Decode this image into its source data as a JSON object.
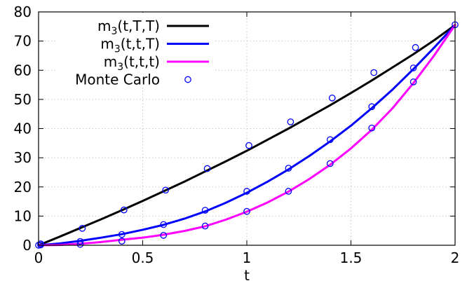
{
  "chart_data": {
    "type": "line",
    "title": "",
    "xlabel": "t",
    "ylabel": "",
    "xlim": [
      0,
      2
    ],
    "ylim": [
      0,
      80
    ],
    "x_ticks": [
      {
        "value": 0,
        "label": "0"
      },
      {
        "value": 0.5,
        "label": "0.5"
      },
      {
        "value": 1,
        "label": "1"
      },
      {
        "value": 1.5,
        "label": "1.5"
      },
      {
        "value": 2,
        "label": "2"
      }
    ],
    "y_ticks": [
      {
        "value": 0,
        "label": "0"
      },
      {
        "value": 10,
        "label": "10"
      },
      {
        "value": 20,
        "label": "20"
      },
      {
        "value": 30,
        "label": "30"
      },
      {
        "value": 40,
        "label": "40"
      },
      {
        "value": 50,
        "label": "50"
      },
      {
        "value": 60,
        "label": "60"
      },
      {
        "value": 70,
        "label": "70"
      },
      {
        "value": 80,
        "label": "80"
      }
    ],
    "grid": true,
    "legend_position": "top-left",
    "series": [
      {
        "name": "m3(t,T,T)",
        "legend_main": "m",
        "legend_sub": "3",
        "legend_args": "(t,T,T)",
        "color": "#000000",
        "style": "line",
        "x": [
          0,
          0.1,
          0.2,
          0.3,
          0.4,
          0.5,
          0.6,
          0.7,
          0.8,
          0.9,
          1.0,
          1.1,
          1.2,
          1.3,
          1.4,
          1.5,
          1.6,
          1.7,
          1.8,
          1.9,
          2.0
        ],
        "y": [
          0,
          2.9,
          5.9,
          8.9,
          12.0,
          15.2,
          18.5,
          21.8,
          25.3,
          28.8,
          32.4,
          36.2,
          40.0,
          44.0,
          48.0,
          52.2,
          56.5,
          61.0,
          65.5,
          70.3,
          75.5
        ]
      },
      {
        "name": "m3(t,t,T)",
        "legend_main": "m",
        "legend_sub": "3",
        "legend_args": "(t,t,T)",
        "color": "#0000ff",
        "style": "line",
        "x": [
          0,
          0.1,
          0.2,
          0.3,
          0.4,
          0.5,
          0.6,
          0.7,
          0.8,
          0.9,
          1.0,
          1.1,
          1.2,
          1.3,
          1.4,
          1.5,
          1.6,
          1.7,
          1.8,
          1.9,
          2.0
        ],
        "y": [
          0,
          0.6,
          1.5,
          2.6,
          3.8,
          5.3,
          7.0,
          9.1,
          11.6,
          14.6,
          18.0,
          21.8,
          26.0,
          30.6,
          35.6,
          41.0,
          47.0,
          53.4,
          60.4,
          67.8,
          75.5
        ]
      },
      {
        "name": "m3(t,t,t)",
        "legend_main": "m",
        "legend_sub": "3",
        "legend_args": "(t,t,t)",
        "color": "#ff00ff",
        "style": "line",
        "x": [
          0,
          0.1,
          0.2,
          0.3,
          0.4,
          0.5,
          0.6,
          0.7,
          0.8,
          0.9,
          1.0,
          1.1,
          1.2,
          1.3,
          1.4,
          1.5,
          1.6,
          1.7,
          1.8,
          1.9,
          2.0
        ],
        "y": [
          0,
          0.1,
          0.5,
          1.1,
          1.9,
          2.6,
          3.6,
          4.9,
          6.5,
          8.8,
          11.5,
          14.7,
          18.4,
          22.7,
          27.6,
          33.2,
          39.6,
          47.0,
          55.6,
          65.1,
          75.5
        ]
      },
      {
        "name": "Monte Carlo",
        "legend_main": "Monte Carlo",
        "legend_sub": "",
        "legend_args": "",
        "color": "#0000ff",
        "style": "markers",
        "points": [
          [
            0,
            0
          ],
          [
            0.01,
            0.5
          ],
          [
            0.01,
            0.1
          ],
          [
            0.21,
            5.8
          ],
          [
            0.41,
            12.1
          ],
          [
            0.61,
            18.9
          ],
          [
            0.81,
            26.3
          ],
          [
            1.01,
            34.2
          ],
          [
            1.21,
            42.3
          ],
          [
            1.41,
            50.5
          ],
          [
            1.61,
            59.2
          ],
          [
            1.81,
            67.8
          ],
          [
            0.2,
            1.3
          ],
          [
            0.4,
            3.7
          ],
          [
            0.6,
            7.1
          ],
          [
            0.8,
            12.0
          ],
          [
            1.0,
            18.5
          ],
          [
            1.2,
            26.4
          ],
          [
            1.4,
            36.2
          ],
          [
            1.6,
            47.5
          ],
          [
            1.8,
            60.8
          ],
          [
            0.2,
            0.3
          ],
          [
            0.4,
            1.4
          ],
          [
            0.6,
            3.4
          ],
          [
            0.8,
            6.6
          ],
          [
            1.0,
            11.6
          ],
          [
            1.2,
            18.5
          ],
          [
            1.4,
            28.0
          ],
          [
            1.6,
            40.2
          ],
          [
            1.8,
            56.0
          ],
          [
            2.0,
            75.6
          ]
        ]
      }
    ]
  }
}
